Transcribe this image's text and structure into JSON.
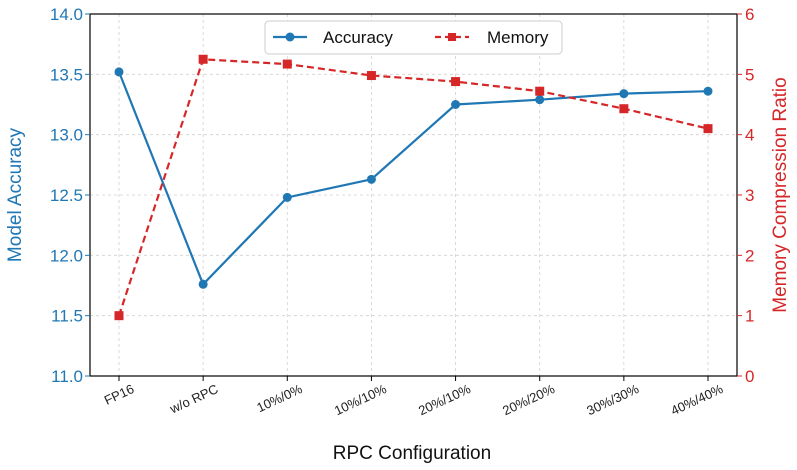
{
  "chart_data": {
    "type": "line",
    "xlabel": "RPC Configuration",
    "categories": [
      "FP16",
      "w/o RPC",
      "10%/0%",
      "10%/10%",
      "20%/10%",
      "20%/20%",
      "30%/30%",
      "40%/40%"
    ],
    "y_left": {
      "label": "Model Accuracy",
      "lim": [
        11.0,
        14.0
      ],
      "ticks": [
        "11.0",
        "11.5",
        "12.0",
        "12.5",
        "13.0",
        "13.5",
        "14.0"
      ],
      "color": "#1f77b4"
    },
    "y_right": {
      "label": "Memory Compression Ratio",
      "lim": [
        0,
        6
      ],
      "ticks": [
        "0",
        "1",
        "2",
        "3",
        "4",
        "5",
        "6"
      ],
      "color": "#d62728"
    },
    "series": [
      {
        "name": "Accuracy",
        "axis": "left",
        "color": "#1f77b4",
        "line_style": "solid",
        "marker": "circle",
        "values": [
          13.52,
          11.76,
          12.48,
          12.63,
          13.25,
          13.29,
          13.34,
          13.36
        ]
      },
      {
        "name": "Memory",
        "axis": "right",
        "color": "#d62728",
        "line_style": "dashed",
        "marker": "square",
        "values": [
          1.0,
          5.25,
          5.17,
          4.98,
          4.88,
          4.72,
          4.43,
          4.1
        ]
      }
    ],
    "legend": {
      "position": "top-center"
    },
    "grid": true
  }
}
